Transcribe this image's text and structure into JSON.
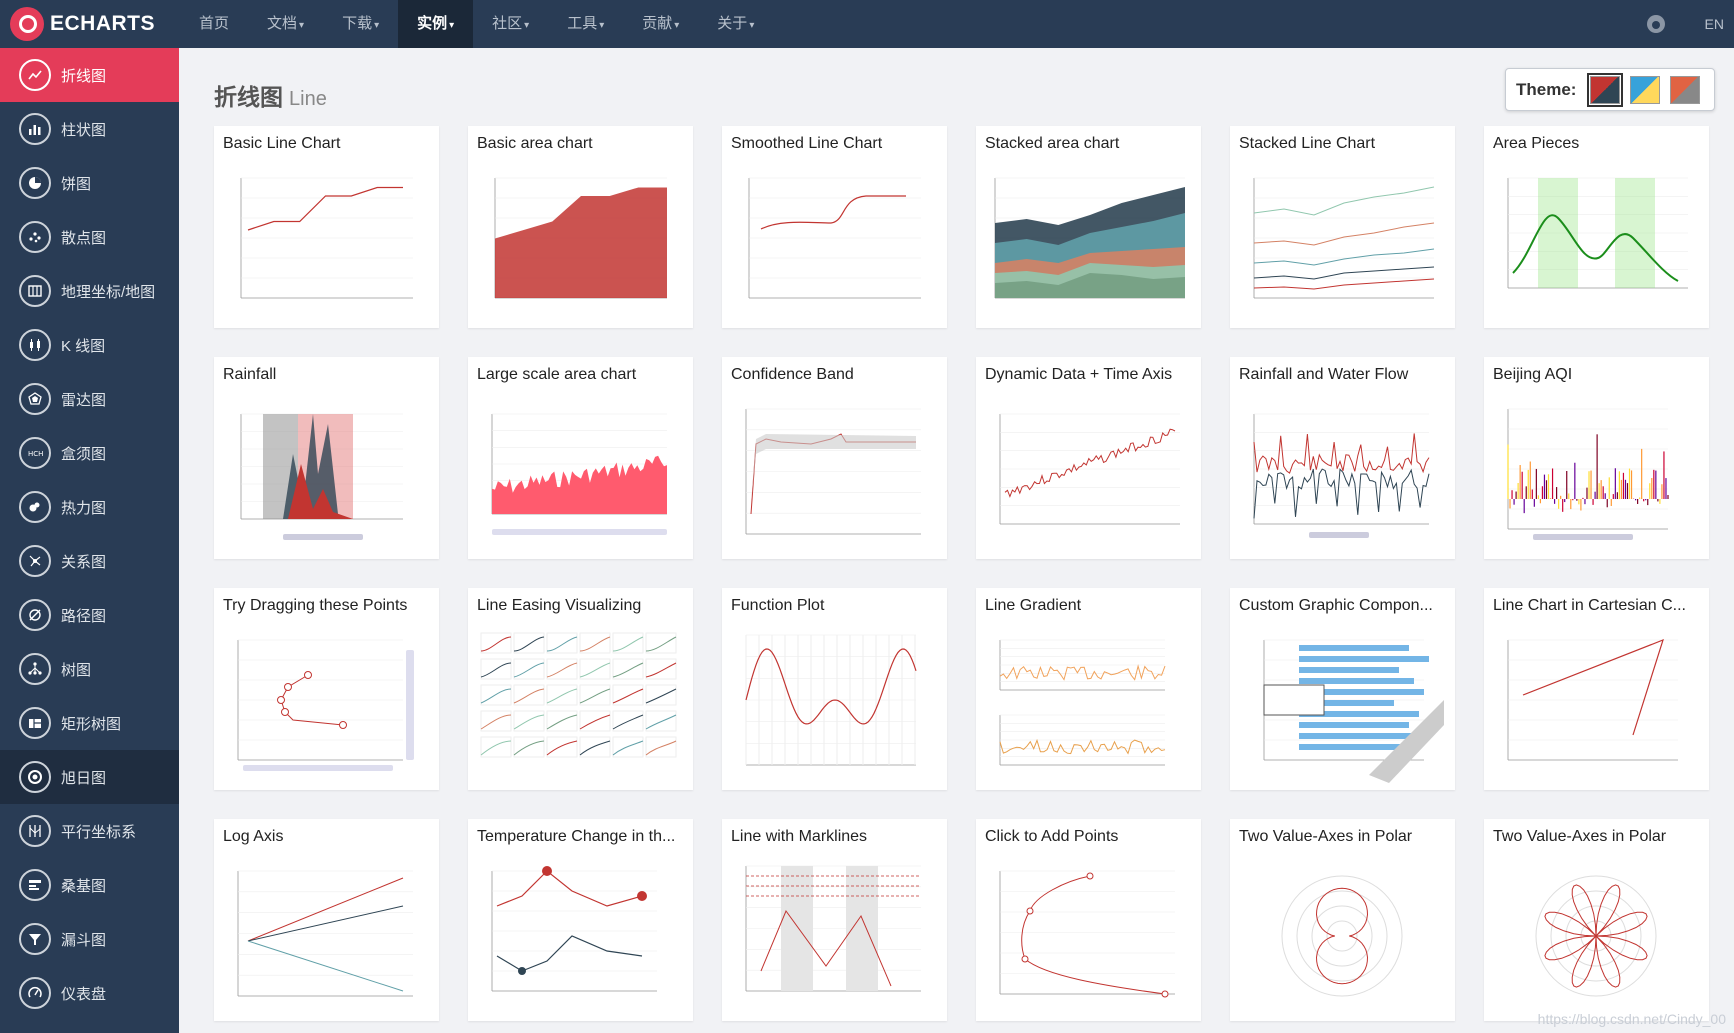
{
  "brand": {
    "name": "ECHARTS"
  },
  "nav": {
    "items": [
      {
        "label": "首页",
        "caret": ""
      },
      {
        "label": "文档",
        "caret": "▾"
      },
      {
        "label": "下载",
        "caret": "▾"
      },
      {
        "label": "实例",
        "caret": "▾"
      },
      {
        "label": "社区",
        "caret": "▾"
      },
      {
        "label": "工具",
        "caret": "▾"
      },
      {
        "label": "贡献",
        "caret": "▾"
      },
      {
        "label": "关于",
        "caret": "▾"
      }
    ],
    "active_index": 3,
    "lang": "EN"
  },
  "sidebar": {
    "items": [
      {
        "label": "折线图",
        "icon": "line-chart-icon"
      },
      {
        "label": "柱状图",
        "icon": "bar-chart-icon"
      },
      {
        "label": "饼图",
        "icon": "pie-chart-icon"
      },
      {
        "label": "散点图",
        "icon": "scatter-icon"
      },
      {
        "label": "地理坐标/地图",
        "icon": "map-icon"
      },
      {
        "label": "K 线图",
        "icon": "candlestick-icon"
      },
      {
        "label": "雷达图",
        "icon": "radar-icon"
      },
      {
        "label": "盒须图",
        "icon": "boxplot-icon"
      },
      {
        "label": "热力图",
        "icon": "heatmap-icon"
      },
      {
        "label": "关系图",
        "icon": "graph-icon"
      },
      {
        "label": "路径图",
        "icon": "lines-icon"
      },
      {
        "label": "树图",
        "icon": "tree-icon"
      },
      {
        "label": "矩形树图",
        "icon": "treemap-icon"
      },
      {
        "label": "旭日图",
        "icon": "sunburst-icon"
      },
      {
        "label": "平行坐标系",
        "icon": "parallel-icon"
      },
      {
        "label": "桑基图",
        "icon": "sankey-icon"
      },
      {
        "label": "漏斗图",
        "icon": "funnel-icon"
      },
      {
        "label": "仪表盘",
        "icon": "gauge-icon"
      }
    ],
    "active_index": 0,
    "hover_index": 13
  },
  "page": {
    "title": "折线图",
    "subtitle": "Line"
  },
  "theme": {
    "label": "Theme:",
    "swatches": [
      {
        "name": "dark",
        "colors": [
          "#c23531",
          "#2f4554"
        ]
      },
      {
        "name": "light",
        "colors": [
          "#37a2da",
          "#ffd85c"
        ]
      },
      {
        "name": "default",
        "colors": [
          "#e06343",
          "#888"
        ]
      }
    ]
  },
  "cards": [
    {
      "title": "Basic Line Chart"
    },
    {
      "title": "Basic area chart"
    },
    {
      "title": "Smoothed Line Chart"
    },
    {
      "title": "Stacked area chart"
    },
    {
      "title": "Stacked Line Chart"
    },
    {
      "title": "Area Pieces"
    },
    {
      "title": "Rainfall"
    },
    {
      "title": "Large scale area chart"
    },
    {
      "title": "Confidence Band"
    },
    {
      "title": "Dynamic Data + Time Axis"
    },
    {
      "title": "Rainfall and Water Flow"
    },
    {
      "title": "Beijing AQI"
    },
    {
      "title": "Try Dragging these Points"
    },
    {
      "title": "Line Easing Visualizing"
    },
    {
      "title": "Function Plot"
    },
    {
      "title": "Line Gradient"
    },
    {
      "title": "Custom Graphic Compon..."
    },
    {
      "title": "Line Chart in Cartesian C..."
    },
    {
      "title": "Log Axis"
    },
    {
      "title": "Temperature Change in th..."
    },
    {
      "title": "Line with Marklines"
    },
    {
      "title": "Click to Add Points"
    },
    {
      "title": "Two Value-Axes in Polar"
    },
    {
      "title": "Two Value-Axes in Polar"
    }
  ],
  "watermark": "https://blog.csdn.net/Cindy_00"
}
